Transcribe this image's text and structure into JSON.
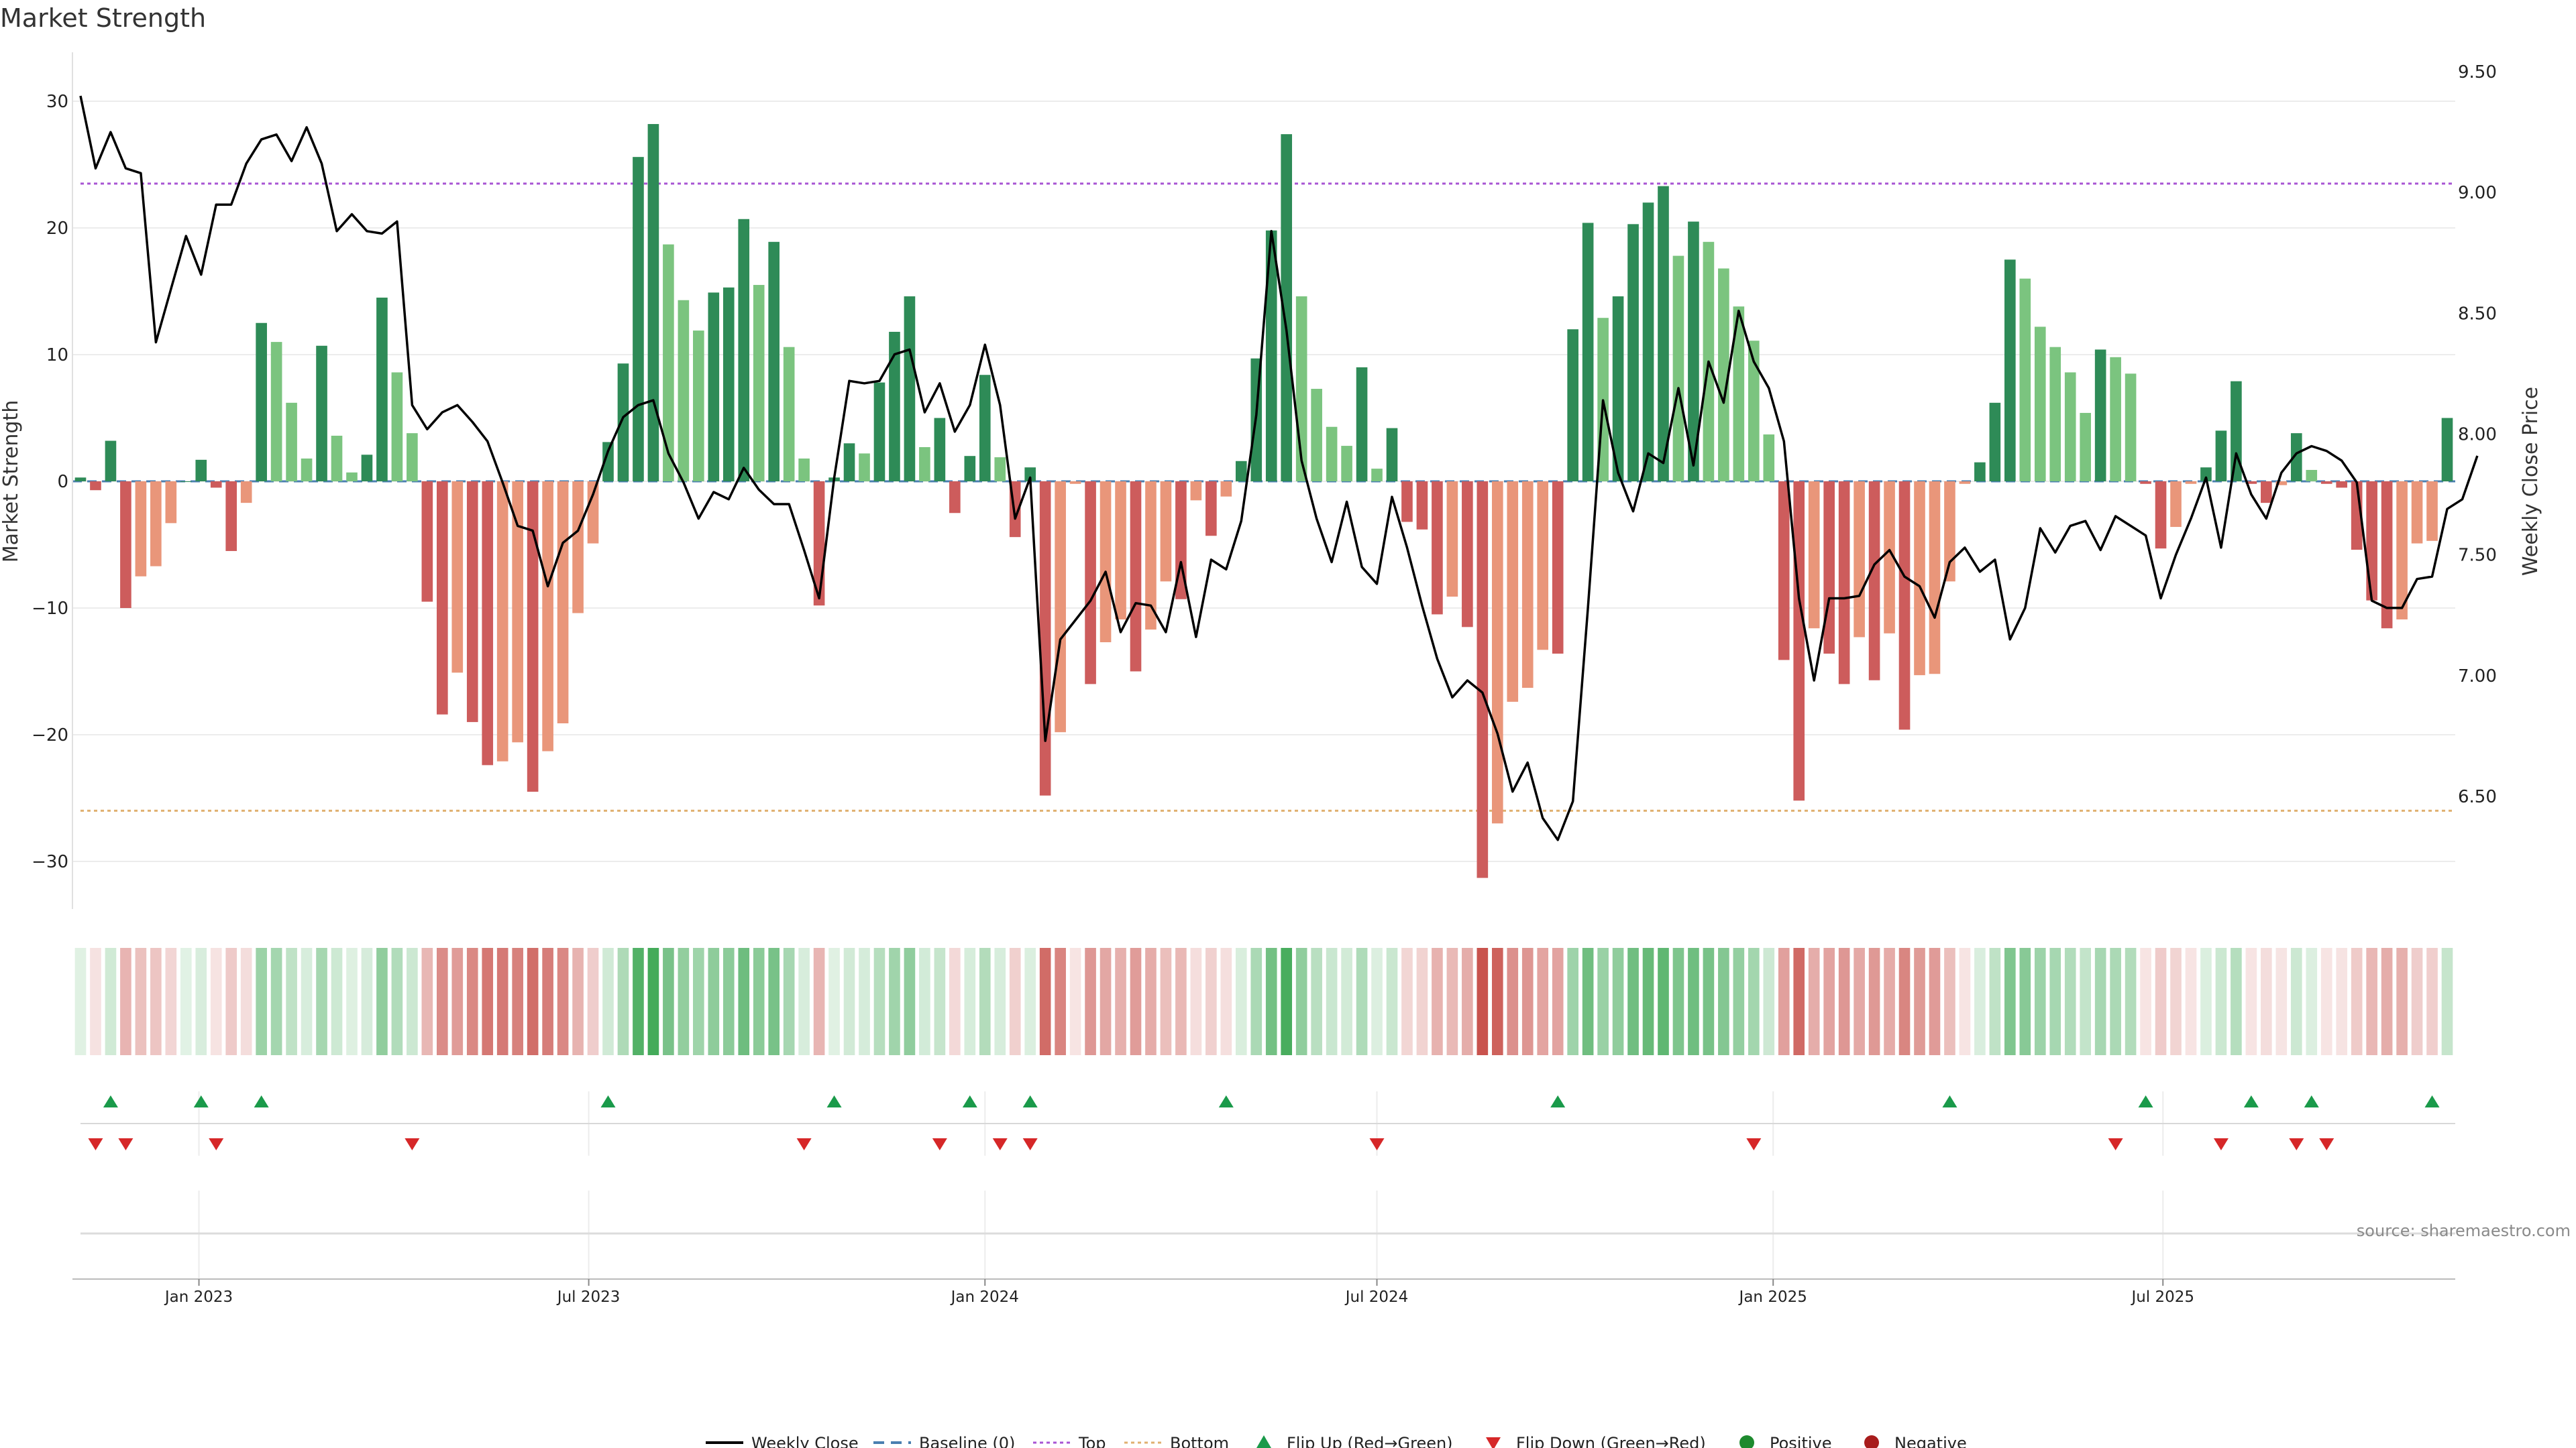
{
  "chart_data": {
    "type": "bar",
    "title": "Market Strength",
    "ylabel_left": "Market Strength",
    "ylabel_right": "Weekly Close Price",
    "ylim_left": [
      -34,
      34
    ],
    "ylim_right": [
      6.1,
      9.55
    ],
    "yticks_left": [
      30,
      20,
      10,
      0,
      -10,
      -20,
      -30
    ],
    "ytick_labels_left": [
      "30",
      "20",
      "10",
      "0",
      "−10",
      "−20",
      "−30"
    ],
    "yticks_right": [
      9.5,
      9.0,
      8.5,
      8.0,
      7.5,
      7.0,
      6.5
    ],
    "ytick_labels_right": [
      "9.50",
      "9.00",
      "8.50",
      "8.00",
      "7.50",
      "7.00",
      "6.50"
    ],
    "top_line": 23.5,
    "bottom_line": -26,
    "x_start": "2022-11-07",
    "x_step_weeks": 1,
    "strength": [
      0.3,
      -0.7,
      3.2,
      -10,
      -7.5,
      -6.7,
      -3.3,
      0,
      1.7,
      -0.5,
      -5.5,
      -1.7,
      12.5,
      11,
      6.2,
      1.8,
      10.7,
      3.6,
      0.7,
      2.1,
      14.5,
      8.6,
      3.8,
      -9.5,
      -18.4,
      -15.1,
      -19,
      -22.4,
      -22.1,
      -20.6,
      -24.5,
      -21.3,
      -19.1,
      -10.4,
      -4.9,
      3.1,
      9.3,
      25.6,
      28.2,
      18.7,
      14.3,
      11.9,
      14.9,
      15.3,
      20.7,
      15.5,
      18.9,
      10.6,
      1.8,
      -9.8,
      0.3,
      3,
      2.2,
      7.8,
      11.8,
      14.6,
      2.7,
      5,
      -2.5,
      2,
      8.4,
      1.9,
      -4.4,
      1.1,
      -24.8,
      -19.8,
      -0.2,
      -16,
      -12.7,
      -10.9,
      -15,
      -11.7,
      -7.9,
      -9.3,
      -1.5,
      -4.3,
      -1.2,
      1.6,
      9.7,
      19.8,
      27.4,
      14.6,
      7.3,
      4.3,
      2.8,
      9,
      1,
      4.2,
      -3.2,
      -3.8,
      -10.5,
      -9.1,
      -11.5,
      -31.3,
      -27,
      -17.4,
      -16.3,
      -13.3,
      -13.6,
      12,
      20.4,
      12.9,
      14.6,
      20.3,
      22,
      23.3,
      17.8,
      20.5,
      18.9,
      16.8,
      13.8,
      11.1,
      3.7,
      -14.1,
      -25.2,
      -11.6,
      -13.6,
      -16,
      -12.3,
      -15.7,
      -12,
      -19.6,
      -15.3,
      -15.2,
      -7.9,
      -0.2,
      1.5,
      6.2,
      17.5,
      16,
      12.2,
      10.6,
      8.6,
      5.4,
      10.4,
      9.8,
      8.5,
      -0.2,
      -5.3,
      -3.6,
      -0.2,
      1.1,
      4,
      7.9,
      -0.2,
      -1.7,
      -0.3,
      3.8,
      0.9,
      -0.2,
      -0.5,
      -5.4,
      -9.4,
      -11.6,
      -10.9,
      -4.9,
      -4.7,
      5
    ],
    "weekly_close": [
      9.4,
      9.1,
      9.25,
      9.1,
      9.08,
      8.38,
      8.6,
      8.82,
      8.66,
      8.95,
      8.95,
      9.12,
      9.22,
      9.24,
      9.13,
      9.27,
      9.12,
      8.84,
      8.91,
      8.84,
      8.83,
      8.88,
      8.12,
      8.02,
      8.09,
      8.12,
      8.05,
      7.97,
      7.8,
      7.62,
      7.6,
      7.37,
      7.55,
      7.6,
      7.75,
      7.93,
      8.07,
      8.12,
      8.14,
      7.92,
      7.8,
      7.65,
      7.76,
      7.73,
      7.86,
      7.77,
      7.71,
      7.71,
      7.52,
      7.32,
      7.82,
      8.22,
      8.21,
      8.22,
      8.33,
      8.35,
      8.09,
      8.21,
      8.01,
      8.12,
      8.37,
      8.12,
      7.65,
      7.82,
      6.73,
      7.15,
      7.23,
      7.31,
      7.43,
      7.18,
      7.3,
      7.29,
      7.18,
      7.47,
      7.16,
      7.48,
      7.44,
      7.64,
      8.08,
      8.84,
      8.43,
      7.89,
      7.65,
      7.47,
      7.72,
      7.45,
      7.38,
      7.74,
      7.53,
      7.29,
      7.07,
      6.91,
      6.98,
      6.93,
      6.76,
      6.52,
      6.64,
      6.41,
      6.32,
      6.48,
      7.28,
      8.14,
      7.84,
      7.68,
      7.92,
      7.88,
      8.19,
      7.87,
      8.3,
      8.13,
      8.51,
      8.3,
      8.19,
      7.97,
      7.32,
      6.98,
      7.32,
      7.32,
      7.33,
      7.46,
      7.52,
      7.41,
      7.37,
      7.24,
      7.47,
      7.53,
      7.43,
      7.48,
      7.15,
      7.28,
      7.61,
      7.51,
      7.62,
      7.64,
      7.52,
      7.66,
      7.62,
      7.58,
      7.32,
      7.5,
      7.65,
      7.82,
      7.53,
      7.92,
      7.75,
      7.65,
      7.84,
      7.92,
      7.95,
      7.93,
      7.89,
      7.8,
      7.31,
      7.28,
      7.28,
      7.4,
      7.41,
      7.69,
      7.73,
      7.91
    ],
    "flips_up_index": [
      2,
      8,
      12,
      35,
      50,
      59,
      63,
      76,
      98,
      124,
      137,
      144,
      148,
      156
    ],
    "flips_down_index": [
      1,
      3,
      9,
      22,
      48,
      57,
      61,
      63,
      86,
      111,
      135,
      142,
      147,
      149
    ],
    "x_tick_labels": [
      "Jan 2023",
      "Jul 2023",
      "Jan 2024",
      "Jul 2024",
      "Jan 2025",
      "Jul 2025"
    ],
    "x_tick_dates": [
      "2023-01-01",
      "2023-07-01",
      "2024-01-01",
      "2024-07-01",
      "2025-01-01",
      "2025-07-01"
    ],
    "legend": [
      "Weekly Close",
      "Baseline (0)",
      "Top",
      "Bottom",
      "Flip Up (Red→Green)",
      "Flip Down (Green→Red)",
      "Positive",
      "Negative"
    ]
  },
  "source": "source: sharemaestro.com",
  "colors": {
    "pos_strong": "#2e8b57",
    "pos_light": "#7bc47f",
    "neg_strong": "#cd5c5c",
    "neg_light": "#e9967a",
    "top": "#a855d4",
    "bottom": "#e0b070",
    "baseline": "#4a7fb0",
    "flip_up": "#1a9a4a",
    "flip_down": "#d62728",
    "positive_dot": "#1e8a2e",
    "negative_dot": "#a81c1c"
  }
}
